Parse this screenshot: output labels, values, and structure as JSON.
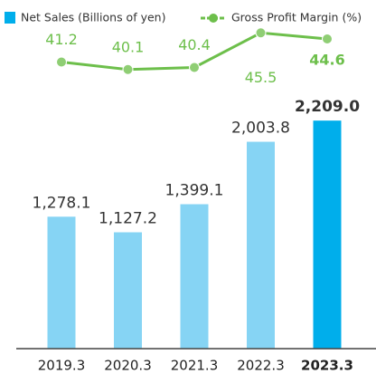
{
  "chart_data": {
    "type": "bar_line",
    "categories": [
      "2019.3",
      "2020.3",
      "2021.3",
      "2022.3",
      "2023.3"
    ],
    "series": [
      {
        "name": "Net Sales (Billions of yen)",
        "type": "bar",
        "color": "#86d4f4",
        "highlight_color": "#00aeeb",
        "values": [
          1278.1,
          1127.2,
          1399.1,
          2003.8,
          2209.0
        ],
        "value_labels": [
          "1,278.1",
          "1,127.2",
          "1,399.1",
          "2,003.8",
          "2,209.0"
        ]
      },
      {
        "name": "Gross Profit Margin (%)",
        "type": "line",
        "axis": "y2",
        "color": "#6dbf4b",
        "values": [
          41.2,
          40.1,
          40.4,
          45.5,
          44.6
        ]
      }
    ],
    "highlight": 4,
    "ylim": [
      0,
      2500
    ],
    "y2lim": [
      37,
      47
    ]
  }
}
